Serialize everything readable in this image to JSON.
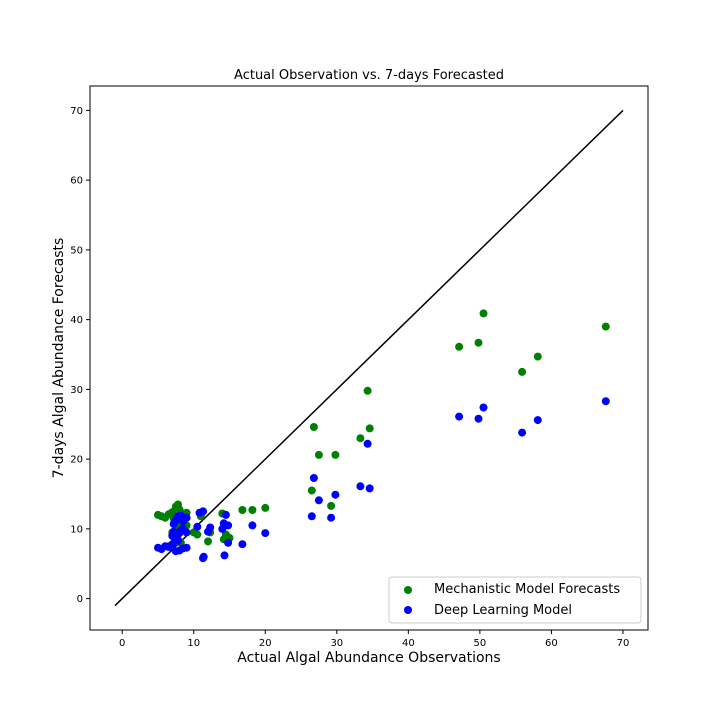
{
  "chart_data": {
    "type": "scatter",
    "title": "Actual Observation vs. 7-days Forecasted",
    "xlabel": "Actual Algal Abundance Observations",
    "ylabel": "7-days Algal Abundance Forecasts",
    "xlim": [
      -4.5,
      73.5
    ],
    "ylim": [
      -4.5,
      73.5
    ],
    "xticks": [
      0,
      10,
      20,
      30,
      40,
      50,
      60,
      70
    ],
    "yticks": [
      0,
      10,
      20,
      30,
      40,
      50,
      60,
      70
    ],
    "grid": false,
    "legend_position": "bottom-right",
    "reference_line": {
      "x": [
        -1,
        70
      ],
      "y": [
        -1,
        70
      ],
      "color": "#000000"
    },
    "series": [
      {
        "name": "Mechanistic Model Forecasts",
        "color": "#008000",
        "points": [
          [
            5,
            12
          ],
          [
            5.5,
            11.8
          ],
          [
            6,
            11.6
          ],
          [
            6.5,
            12.1
          ],
          [
            7,
            12.4
          ],
          [
            7.2,
            11.5
          ],
          [
            7.5,
            13.2
          ],
          [
            7.8,
            13.5
          ],
          [
            8,
            12.8
          ],
          [
            8.2,
            11.9
          ],
          [
            8.5,
            12.2
          ],
          [
            9,
            12.3
          ],
          [
            7,
            9.5
          ],
          [
            7.5,
            10.5
          ],
          [
            8,
            10.8
          ],
          [
            8.5,
            11.2
          ],
          [
            9,
            10.5
          ],
          [
            7.2,
            8.8
          ],
          [
            7.8,
            8.5
          ],
          [
            8.2,
            8.0
          ],
          [
            6.5,
            7.5
          ],
          [
            10,
            9.5
          ],
          [
            10.5,
            9.2
          ],
          [
            11,
            11.8
          ],
          [
            11.3,
            12.5
          ],
          [
            12,
            8.2
          ],
          [
            12.3,
            9.5
          ],
          [
            14,
            12.2
          ],
          [
            14.2,
            8.5
          ],
          [
            14.5,
            9.2
          ],
          [
            15,
            8.7
          ],
          [
            16.8,
            12.7
          ],
          [
            18.2,
            12.7
          ],
          [
            20,
            13.0
          ],
          [
            26.5,
            15.5
          ],
          [
            26.8,
            24.6
          ],
          [
            27.5,
            20.6
          ],
          [
            29.2,
            13.3
          ],
          [
            29.8,
            20.6
          ],
          [
            33.3,
            23.0
          ],
          [
            34.3,
            29.8
          ],
          [
            34.6,
            24.4
          ],
          [
            47.1,
            36.1
          ],
          [
            49.8,
            36.7
          ],
          [
            50.5,
            40.9
          ],
          [
            55.9,
            32.5
          ],
          [
            58.1,
            34.7
          ],
          [
            67.6,
            39.0
          ]
        ]
      },
      {
        "name": "Deep Learning Model",
        "color": "#0000ff",
        "points": [
          [
            5,
            7.3
          ],
          [
            5.5,
            7.1
          ],
          [
            6,
            7.5
          ],
          [
            6.5,
            7.4
          ],
          [
            7,
            7.8
          ],
          [
            7.5,
            6.8
          ],
          [
            8,
            6.9
          ],
          [
            8.5,
            7.2
          ],
          [
            9,
            7.3
          ],
          [
            7,
            9.0
          ],
          [
            7.2,
            9.6
          ],
          [
            7.5,
            8.6
          ],
          [
            7.8,
            8.3
          ],
          [
            8,
            9.4
          ],
          [
            8.2,
            9.8
          ],
          [
            8.5,
            10.0
          ],
          [
            9,
            9.5
          ],
          [
            7.2,
            10.7
          ],
          [
            7.5,
            11.2
          ],
          [
            7.8,
            11.8
          ],
          [
            8.2,
            11.9
          ],
          [
            8.5,
            11.1
          ],
          [
            9,
            11.6
          ],
          [
            10.5,
            10.3
          ],
          [
            10.8,
            12.3
          ],
          [
            11.3,
            12.5
          ],
          [
            11.4,
            6.0
          ],
          [
            11.3,
            5.8
          ],
          [
            12,
            9.6
          ],
          [
            12.3,
            10.2
          ],
          [
            14,
            10.0
          ],
          [
            14.2,
            10.8
          ],
          [
            14.5,
            12.0
          ],
          [
            14.8,
            10.5
          ],
          [
            14.3,
            6.2
          ],
          [
            14.8,
            8.0
          ],
          [
            16.8,
            7.8
          ],
          [
            18.2,
            10.5
          ],
          [
            20,
            9.4
          ],
          [
            26.5,
            11.8
          ],
          [
            26.8,
            17.3
          ],
          [
            27.5,
            14.1
          ],
          [
            29.2,
            11.6
          ],
          [
            29.8,
            14.9
          ],
          [
            33.3,
            16.1
          ],
          [
            34.3,
            22.2
          ],
          [
            34.6,
            15.8
          ],
          [
            47.1,
            26.1
          ],
          [
            49.8,
            25.8
          ],
          [
            50.5,
            27.4
          ],
          [
            55.9,
            23.8
          ],
          [
            58.1,
            25.6
          ],
          [
            67.6,
            28.3
          ]
        ]
      }
    ]
  }
}
